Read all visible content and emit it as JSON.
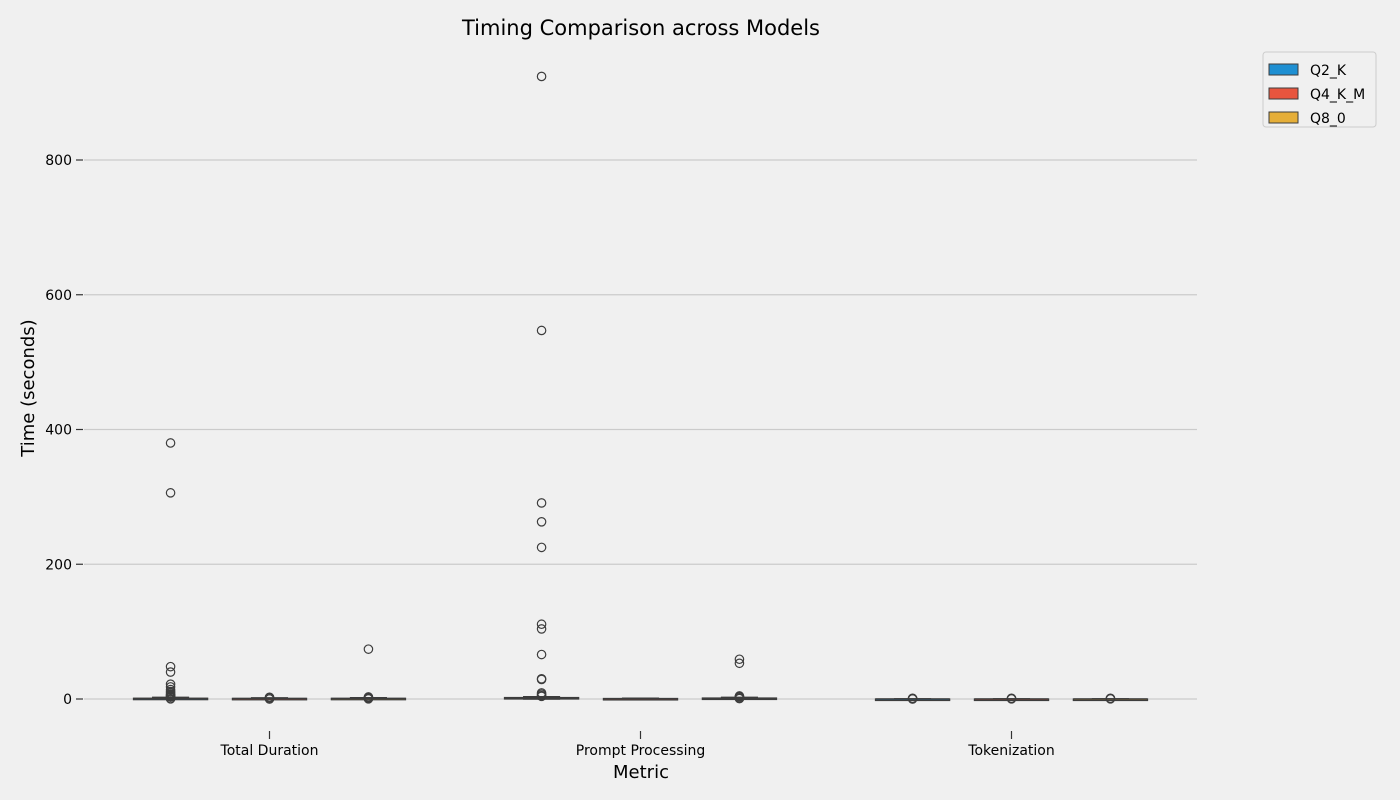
{
  "chart_data": {
    "type": "boxplot",
    "title": "Timing Comparison across Models",
    "xlabel": "Metric",
    "ylabel": "Time (seconds)",
    "ylim": [
      -50,
      940
    ],
    "yticks": [
      0,
      200,
      400,
      600,
      800
    ],
    "grid": "horizontal",
    "legend_position": "top-right outside",
    "categories": [
      "Total Duration",
      "Prompt Processing",
      "Tokenization"
    ],
    "series": [
      {
        "name": "Q2_K",
        "color": "#1e8fd2",
        "boxes": [
          {
            "whislo": 0,
            "q1": 0.3,
            "med": 0.6,
            "q3": 1.2,
            "whishi": 2.5,
            "fliers": [
              380,
              306,
              48,
              40,
              22,
              18,
              14,
              11,
              9,
              7,
              6,
              5,
              4,
              3,
              2.8,
              0.5,
              0.2
            ]
          },
          {
            "whislo": 0,
            "q1": 0.5,
            "med": 1.0,
            "q3": 2.2,
            "whishi": 3.5,
            "fliers": [
              924,
              547,
              291,
              263,
              225,
              111,
              104,
              66,
              30,
              29,
              9,
              7,
              5,
              4
            ]
          },
          {
            "whislo": 0,
            "q1": 0,
            "med": 0,
            "q3": 0,
            "whishi": 0,
            "fliers": [
              1.0,
              0.6,
              0.3,
              0.1
            ]
          }
        ]
      },
      {
        "name": "Q4_K_M",
        "color": "#e8553e",
        "boxes": [
          {
            "whislo": 0,
            "q1": 0.3,
            "med": 0.6,
            "q3": 1.0,
            "whishi": 1.8,
            "fliers": [
              2.5,
              2.2,
              1.9,
              0.2,
              0.1
            ]
          },
          {
            "whislo": 0,
            "q1": 0.3,
            "med": 0.5,
            "q3": 0.8,
            "whishi": 1.2,
            "fliers": []
          },
          {
            "whislo": 0,
            "q1": 0,
            "med": 0,
            "q3": 0,
            "whishi": 0,
            "fliers": [
              1.0,
              0.5,
              0.2
            ]
          }
        ]
      },
      {
        "name": "Q8_0",
        "color": "#e5ae38",
        "boxes": [
          {
            "whislo": 0,
            "q1": 0.3,
            "med": 0.6,
            "q3": 1.1,
            "whishi": 2.0,
            "fliers": [
              74,
              3.0,
              2.5,
              1.5,
              0.5,
              0.2
            ]
          },
          {
            "whislo": 0,
            "q1": 0.4,
            "med": 0.8,
            "q3": 1.5,
            "whishi": 2.5,
            "fliers": [
              59,
              53,
              4.5,
              3.5,
              2.8,
              1.2,
              0.6
            ]
          },
          {
            "whislo": 0,
            "q1": 0,
            "med": 0,
            "q3": 0,
            "whishi": 0,
            "fliers": [
              1.0,
              0.5,
              0.2
            ]
          }
        ]
      }
    ]
  }
}
